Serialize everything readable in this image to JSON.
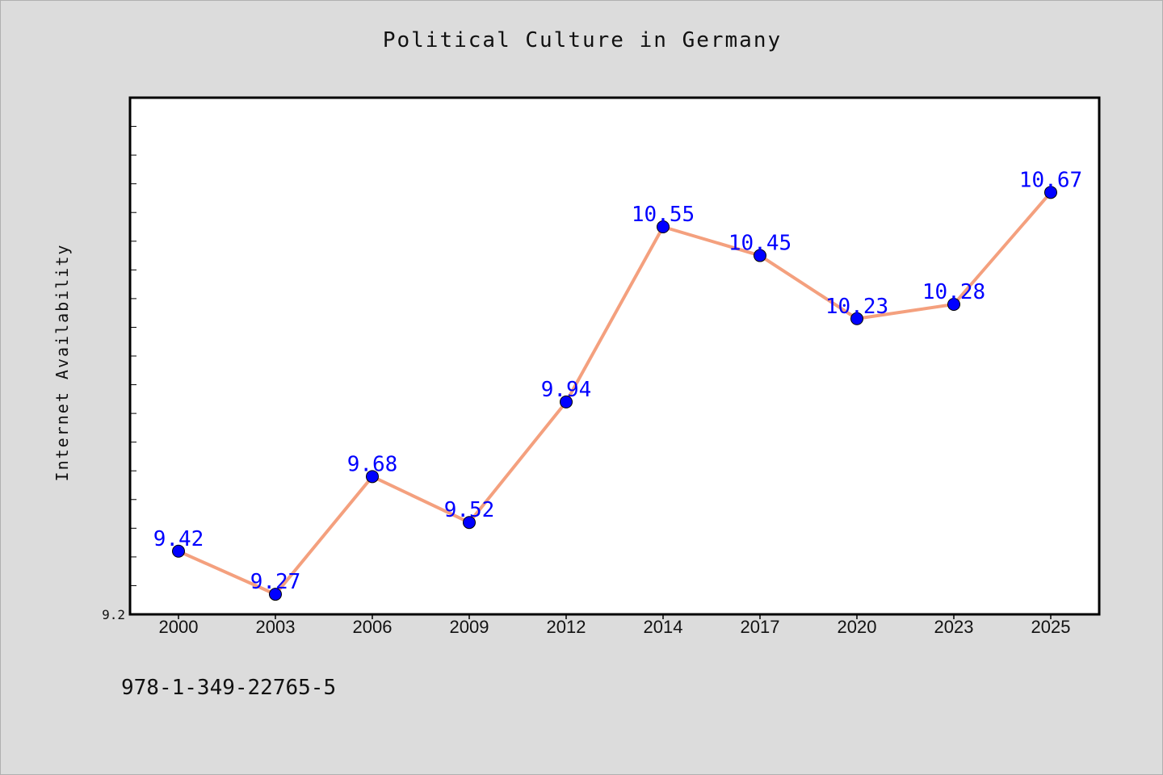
{
  "chart_data": {
    "type": "line",
    "title": "Political Culture in Germany",
    "xlabel": "",
    "ylabel": "Internet Availability",
    "categories": [
      "2000",
      "2003",
      "2006",
      "2009",
      "2012",
      "2014",
      "2017",
      "2020",
      "2023",
      "2025"
    ],
    "series": [
      {
        "values": [
          9.42,
          9.27,
          9.68,
          9.52,
          9.94,
          10.55,
          10.45,
          10.23,
          10.28,
          10.67
        ]
      }
    ],
    "data_labels": [
      "9.42",
      "9.27",
      "9.68",
      "9.52",
      "9.94",
      "10.55",
      "10.45",
      "10.23",
      "10.28",
      "10.67"
    ],
    "ylim": [
      9.2,
      11.0
    ],
    "y_tick_labels": [
      "9.2"
    ],
    "grid": false,
    "colors": {
      "line": "#f4a07e",
      "marker": "#0000ff",
      "data_label": "#0000ff",
      "plot_background": "#ffffff",
      "page_background": "#dcdcdc"
    }
  },
  "footer_text": "978-1-349-22765-5"
}
